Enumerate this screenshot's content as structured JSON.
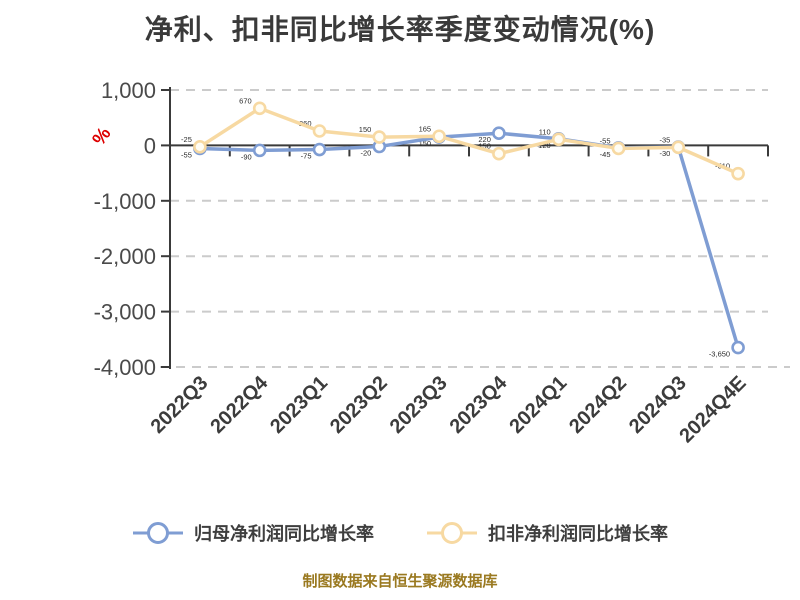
{
  "chart_data": {
    "type": "line",
    "title": "净利、扣非同比增长率季度变动情况(%)",
    "ylabel": "%",
    "categories": [
      "2022Q3",
      "2022Q4",
      "2023Q1",
      "2023Q2",
      "2023Q3",
      "2023Q4",
      "2024Q1",
      "2024Q2",
      "2024Q3",
      "2024Q4E"
    ],
    "series": [
      {
        "name": "归母净利润同比增长率",
        "color": "#7f9dd3",
        "marker_fill": "#ffffff",
        "values": [
          -55,
          -90,
          -75,
          -20,
          150,
          220,
          120,
          -45,
          -30,
          -3650
        ]
      },
      {
        "name": "扣非净利润同比增长率",
        "color": "#f7d9a2",
        "marker_fill": "#fffdf4",
        "values": [
          -25,
          670,
          260,
          150,
          165,
          -150,
          110,
          -55,
          -35,
          -510
        ]
      }
    ],
    "ylim": [
      -4000,
      1000
    ],
    "yticks": [
      1000,
      0,
      -1000,
      -2000,
      -3000,
      -4000
    ],
    "grid": "horizontal-dashed",
    "legend_position": "bottom",
    "x_tick_rotation": -45
  },
  "ui": {
    "footer": "制图数据来自恒生聚源数据库",
    "colors": {
      "title": "#3a3a3a",
      "axis": "#3a3a3a",
      "grid": "#cbcbcb",
      "y_tick_label": "#4a4a4a",
      "x_tick_label": "#3c3c3c",
      "ylabel": "#dd0000",
      "data_label": "#2b2b2b",
      "footer": "#9a7920",
      "background": "#ffffff"
    }
  }
}
